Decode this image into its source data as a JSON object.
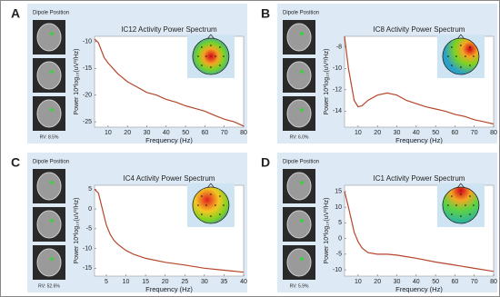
{
  "chart_data": [
    {
      "type": "line",
      "panel_label": "A",
      "dipole_title": "Dipole Position",
      "rv_label": "RV: 8.5%",
      "title": "IC12 Activity Power Spectrum",
      "xlabel": "Frequency (Hz)",
      "ylabel": "Power 10*log₁₀(uV²/Hz)",
      "x": [
        3,
        5,
        8,
        10,
        15,
        20,
        25,
        30,
        35,
        40,
        45,
        50,
        55,
        60,
        65,
        70,
        75,
        80
      ],
      "series": [
        {
          "color": "#b5462b",
          "values": [
            -9.5,
            -10.2,
            -13,
            -14,
            -16,
            -17.5,
            -18.5,
            -19.5,
            -20,
            -20.8,
            -21.3,
            -22,
            -22.5,
            -23,
            -23.8,
            -24.5,
            -25,
            -25.8
          ]
        }
      ],
      "xlim": [
        3,
        80
      ],
      "ylim": [
        -26,
        -9
      ],
      "xticks": [
        10,
        20,
        30,
        40,
        50,
        60,
        70,
        80
      ],
      "yticks": [
        -25,
        -20,
        -15,
        -10
      ]
    },
    {
      "type": "line",
      "panel_label": "B",
      "dipole_title": "Dipole Position",
      "rv_label": "RV: 6.0%",
      "title": "IC8 Activity Power Spectrum",
      "xlabel": "Frequency (Hz)",
      "ylabel": "Power 10*log₁₀(uV²/Hz)",
      "x": [
        3,
        5,
        8,
        10,
        12,
        15,
        20,
        25,
        30,
        35,
        40,
        45,
        50,
        55,
        60,
        65,
        70,
        75,
        80
      ],
      "series": [
        {
          "color": "#b5462b",
          "values": [
            -7,
            -10,
            -13,
            -13.6,
            -13.5,
            -13,
            -12.5,
            -12.3,
            -12.5,
            -13,
            -13.3,
            -13.6,
            -13.8,
            -14,
            -14.3,
            -14.5,
            -14.8,
            -15,
            -15.2
          ]
        }
      ],
      "xlim": [
        3,
        80
      ],
      "ylim": [
        -15.5,
        -7
      ],
      "xticks": [
        10,
        20,
        30,
        40,
        50,
        60,
        70,
        80
      ],
      "yticks": [
        -14,
        -12,
        -10,
        -8
      ]
    },
    {
      "type": "line",
      "panel_label": "C",
      "dipole_title": "Dipole Position",
      "rv_label": "RV: 52.6%",
      "title": "IC4 Activity Power Spectrum",
      "xlabel": "Frequency (Hz)",
      "ylabel": "Power 10*log₁₀(uV²/Hz)",
      "x": [
        2,
        3,
        4,
        5,
        6,
        7,
        8,
        10,
        12,
        15,
        20,
        25,
        30,
        35,
        40
      ],
      "series": [
        {
          "color": "#b5462b",
          "values": [
            5,
            4,
            0,
            -4,
            -6.5,
            -8,
            -9,
            -10.5,
            -11.5,
            -12.5,
            -13.5,
            -14.2,
            -15,
            -15.5,
            -16
          ]
        }
      ],
      "xlim": [
        2,
        40
      ],
      "ylim": [
        -17,
        6
      ],
      "xticks": [
        5,
        10,
        15,
        20,
        25,
        30,
        35,
        40
      ],
      "yticks": [
        -15,
        -10,
        -5,
        0,
        5
      ]
    },
    {
      "type": "line",
      "panel_label": "D",
      "dipole_title": "Dipole Position",
      "rv_label": "RV: 5.9%",
      "title": "IC1 Activity Power Spectrum",
      "xlabel": "Frequency (Hz)",
      "ylabel": "Power 10*log₁₀(uV²/Hz)",
      "x": [
        3,
        5,
        8,
        10,
        12,
        15,
        20,
        25,
        30,
        35,
        40,
        50,
        60,
        70,
        80
      ],
      "series": [
        {
          "color": "#b5462b",
          "values": [
            15,
            10,
            2,
            -1,
            -3,
            -4.5,
            -5,
            -5,
            -5.3,
            -5.8,
            -6.3,
            -7.5,
            -8.5,
            -9.5,
            -10.5
          ]
        }
      ],
      "xlim": [
        3,
        80
      ],
      "ylim": [
        -12,
        17
      ],
      "xticks": [
        10,
        20,
        30,
        40,
        50,
        60,
        70,
        80
      ],
      "yticks": [
        -10,
        -5,
        0,
        5,
        10,
        15
      ]
    }
  ]
}
